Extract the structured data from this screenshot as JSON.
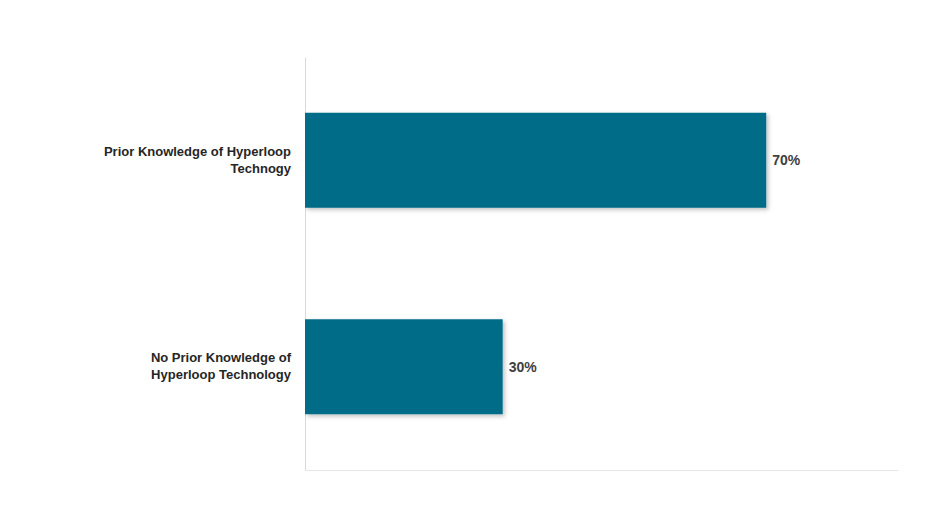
{
  "chart_data": {
    "type": "bar",
    "orientation": "horizontal",
    "categories": [
      "Prior Knowledge of Hyperloop Technogy",
      "No Prior Knowledge of Hyperloop Technology"
    ],
    "values": [
      70,
      30
    ],
    "value_labels": [
      "70%",
      "30%"
    ],
    "color": "#006c87",
    "xlim": [
      0,
      90
    ],
    "xticks": [],
    "data_labels": true,
    "tick_labels": "y",
    "grid": false
  }
}
